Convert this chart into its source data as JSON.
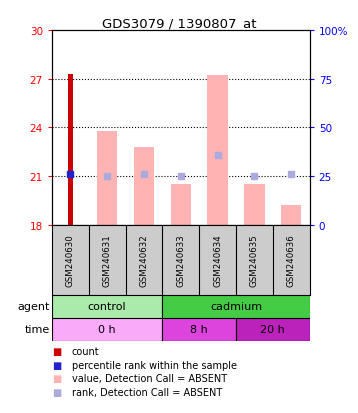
{
  "title": "GDS3079 / 1390807_at",
  "samples": [
    "GSM240630",
    "GSM240631",
    "GSM240632",
    "GSM240633",
    "GSM240634",
    "GSM240635",
    "GSM240636"
  ],
  "ylim_left": [
    18,
    30
  ],
  "ylim_right": [
    0,
    100
  ],
  "yticks_left": [
    18,
    21,
    24,
    27,
    30
  ],
  "yticks_right": [
    0,
    25,
    50,
    75,
    100
  ],
  "ytick_labels_right": [
    "0",
    "25",
    "50",
    "75",
    "100%"
  ],
  "red_bar_values": [
    27.3,
    null,
    null,
    null,
    null,
    null,
    null
  ],
  "pink_bar_values": [
    null,
    23.8,
    22.8,
    20.5,
    27.2,
    20.5,
    19.2
  ],
  "blue_square_values": [
    21.1,
    null,
    null,
    null,
    null,
    null,
    null
  ],
  "lavender_square_values": [
    null,
    21.0,
    21.1,
    21.0,
    22.3,
    21.0,
    21.1
  ],
  "agent_groups": [
    {
      "label": "control",
      "start": 0,
      "end": 3,
      "color": "#aaeaaa"
    },
    {
      "label": "cadmium",
      "start": 3,
      "end": 7,
      "color": "#44cc44"
    }
  ],
  "time_groups": [
    {
      "label": "0 h",
      "start": 0,
      "end": 3,
      "color": "#f9aaf9"
    },
    {
      "label": "8 h",
      "start": 3,
      "end": 5,
      "color": "#dd44dd"
    },
    {
      "label": "20 h",
      "start": 5,
      "end": 7,
      "color": "#bb22bb"
    }
  ],
  "red_color": "#cc0000",
  "pink_color": "#ffb3b3",
  "blue_color": "#2222cc",
  "lavender_color": "#aaaadd",
  "sample_box_color": "#cccccc",
  "legend_items": [
    {
      "label": "count",
      "color": "#cc0000"
    },
    {
      "label": "percentile rank within the sample",
      "color": "#2222cc"
    },
    {
      "label": "value, Detection Call = ABSENT",
      "color": "#ffb3b3"
    },
    {
      "label": "rank, Detection Call = ABSENT",
      "color": "#aaaadd"
    }
  ]
}
